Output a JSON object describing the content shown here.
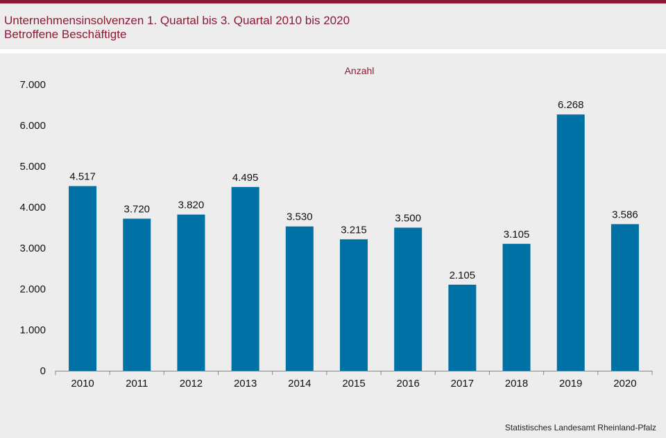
{
  "header": {
    "title": "Unternehmensinsolvenzen 1. Quartal bis 3. Quartal 2010 bis 2020",
    "subtitle": "Betroffene Beschäftigte"
  },
  "source": "Statistisches Landesamt Rheinland-Pfalz",
  "colors": {
    "accent": "#8a1b33",
    "bar": "#0071a4",
    "background": "#ededed"
  },
  "chart_data": {
    "type": "bar",
    "title": "Unternehmensinsolvenzen 1. Quartal bis 3. Quartal 2010 bis 2020",
    "subtitle": "Betroffene Beschäftigte",
    "xlabel": "",
    "ylabel": "Anzahl",
    "categories": [
      "2010",
      "2011",
      "2012",
      "2013",
      "2014",
      "2015",
      "2016",
      "2017",
      "2018",
      "2019",
      "2020"
    ],
    "values": [
      4517,
      3720,
      3820,
      4495,
      3530,
      3215,
      3500,
      2105,
      3105,
      6268,
      3586
    ],
    "value_labels": [
      "4.517",
      "3.720",
      "3.820",
      "4.495",
      "3.530",
      "3.215",
      "3.500",
      "2.105",
      "3.105",
      "6.268",
      "3.586"
    ],
    "ylim": [
      0,
      7000
    ],
    "yticks": [
      0,
      1000,
      2000,
      3000,
      4000,
      5000,
      6000,
      7000
    ],
    "ytick_labels": [
      "0",
      "1.000",
      "2.000",
      "3.000",
      "4.000",
      "5.000",
      "6.000",
      "7.000"
    ],
    "grid": false,
    "legend": "none"
  }
}
